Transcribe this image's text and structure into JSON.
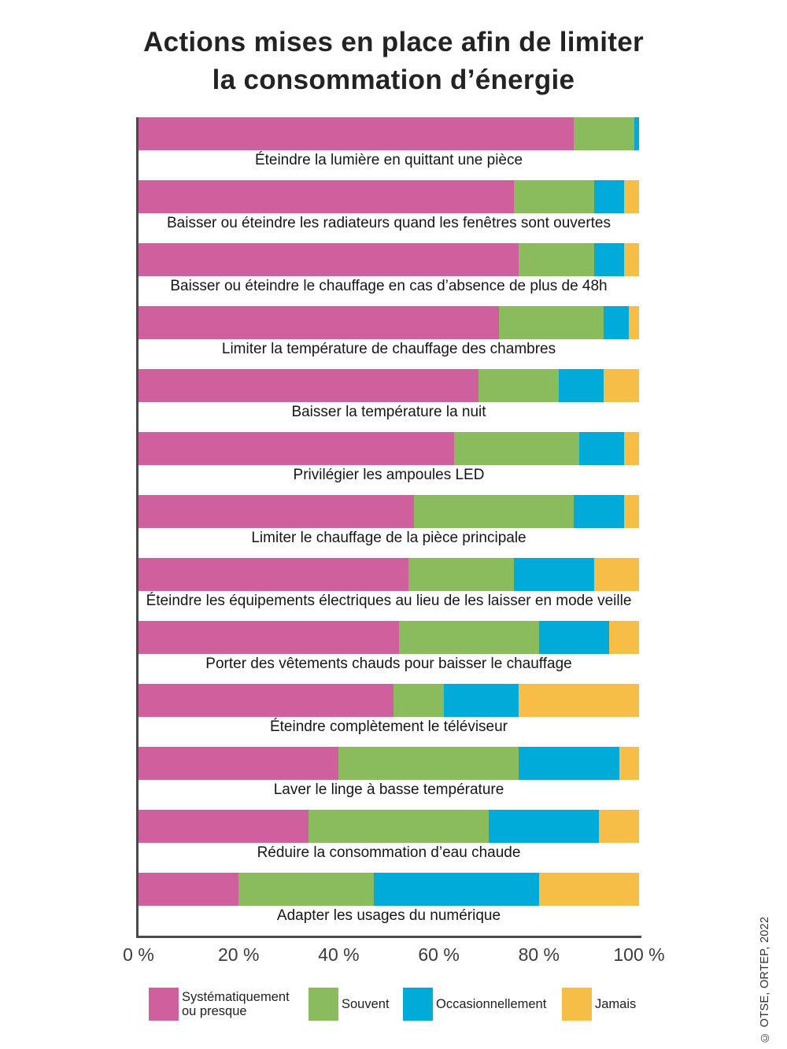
{
  "title": {
    "line1": "Actions mises en place afin de limiter",
    "line2": "la consommation d’énergie"
  },
  "source": "© OTSE, ORTEP, 2022",
  "colors": {
    "systematiquement": "#d05f9d",
    "souvent": "#8abc5e",
    "occasionnellement": "#00abd9",
    "jamais": "#f6bd47",
    "axis": "#4a4a4a"
  },
  "chart_data": {
    "type": "bar",
    "orientation": "horizontal",
    "stacked": true,
    "title": "Actions mises en place afin de limiter la consommation d’énergie",
    "unit": "%",
    "x_axis": {
      "min": 0,
      "max": 100,
      "ticks": [
        "0 %",
        "20 %",
        "40 %",
        "60 %",
        "80 %",
        "100 %"
      ],
      "grid": false
    },
    "legend_position": "bottom",
    "categories": [
      "Éteindre la lumière en quittant une pièce",
      "Baisser ou éteindre les radiateurs quand les fenêtres sont ouvertes",
      "Baisser ou éteindre le chauffage en cas d’absence de plus de 48h",
      "Limiter la température de chauffage des chambres",
      "Baisser la température la nuit",
      "Privilégier les ampoules LED",
      "Limiter le chauffage de la pièce principale",
      "Éteindre les équipements électriques au lieu de les laisser en mode veille",
      "Porter des vêtements chauds pour baisser le chauffage",
      "Éteindre complètement le téléviseur",
      "Laver le linge à basse température",
      "Réduire la consommation d’eau chaude",
      "Adapter les usages du numérique"
    ],
    "series": [
      {
        "key": "systematiquement",
        "name": "Systématiquement ou presque",
        "color": "#d05f9d",
        "values": [
          87,
          75,
          76,
          72,
          68,
          63,
          55,
          54,
          52,
          51,
          40,
          34,
          20
        ]
      },
      {
        "key": "souvent",
        "name": "Souvent",
        "color": "#8abc5e",
        "values": [
          12,
          16,
          15,
          21,
          16,
          25,
          32,
          21,
          28,
          10,
          36,
          36,
          27
        ]
      },
      {
        "key": "occasionnellement",
        "name": "Occasionnellement",
        "color": "#00abd9",
        "values": [
          1,
          6,
          6,
          5,
          9,
          9,
          10,
          16,
          14,
          15,
          20,
          22,
          33
        ]
      },
      {
        "key": "jamais",
        "name": "Jamais",
        "color": "#f6bd47",
        "values": [
          0,
          3,
          3,
          2,
          7,
          3,
          3,
          9,
          6,
          24,
          4,
          8,
          20
        ]
      }
    ],
    "legend": [
      {
        "label": "Systématiquement ou presque",
        "color": "#d05f9d"
      },
      {
        "label": "Souvent",
        "color": "#8abc5e"
      },
      {
        "label": "Occasionnellement",
        "color": "#00abd9"
      },
      {
        "label": "Jamais",
        "color": "#f6bd47"
      }
    ]
  }
}
